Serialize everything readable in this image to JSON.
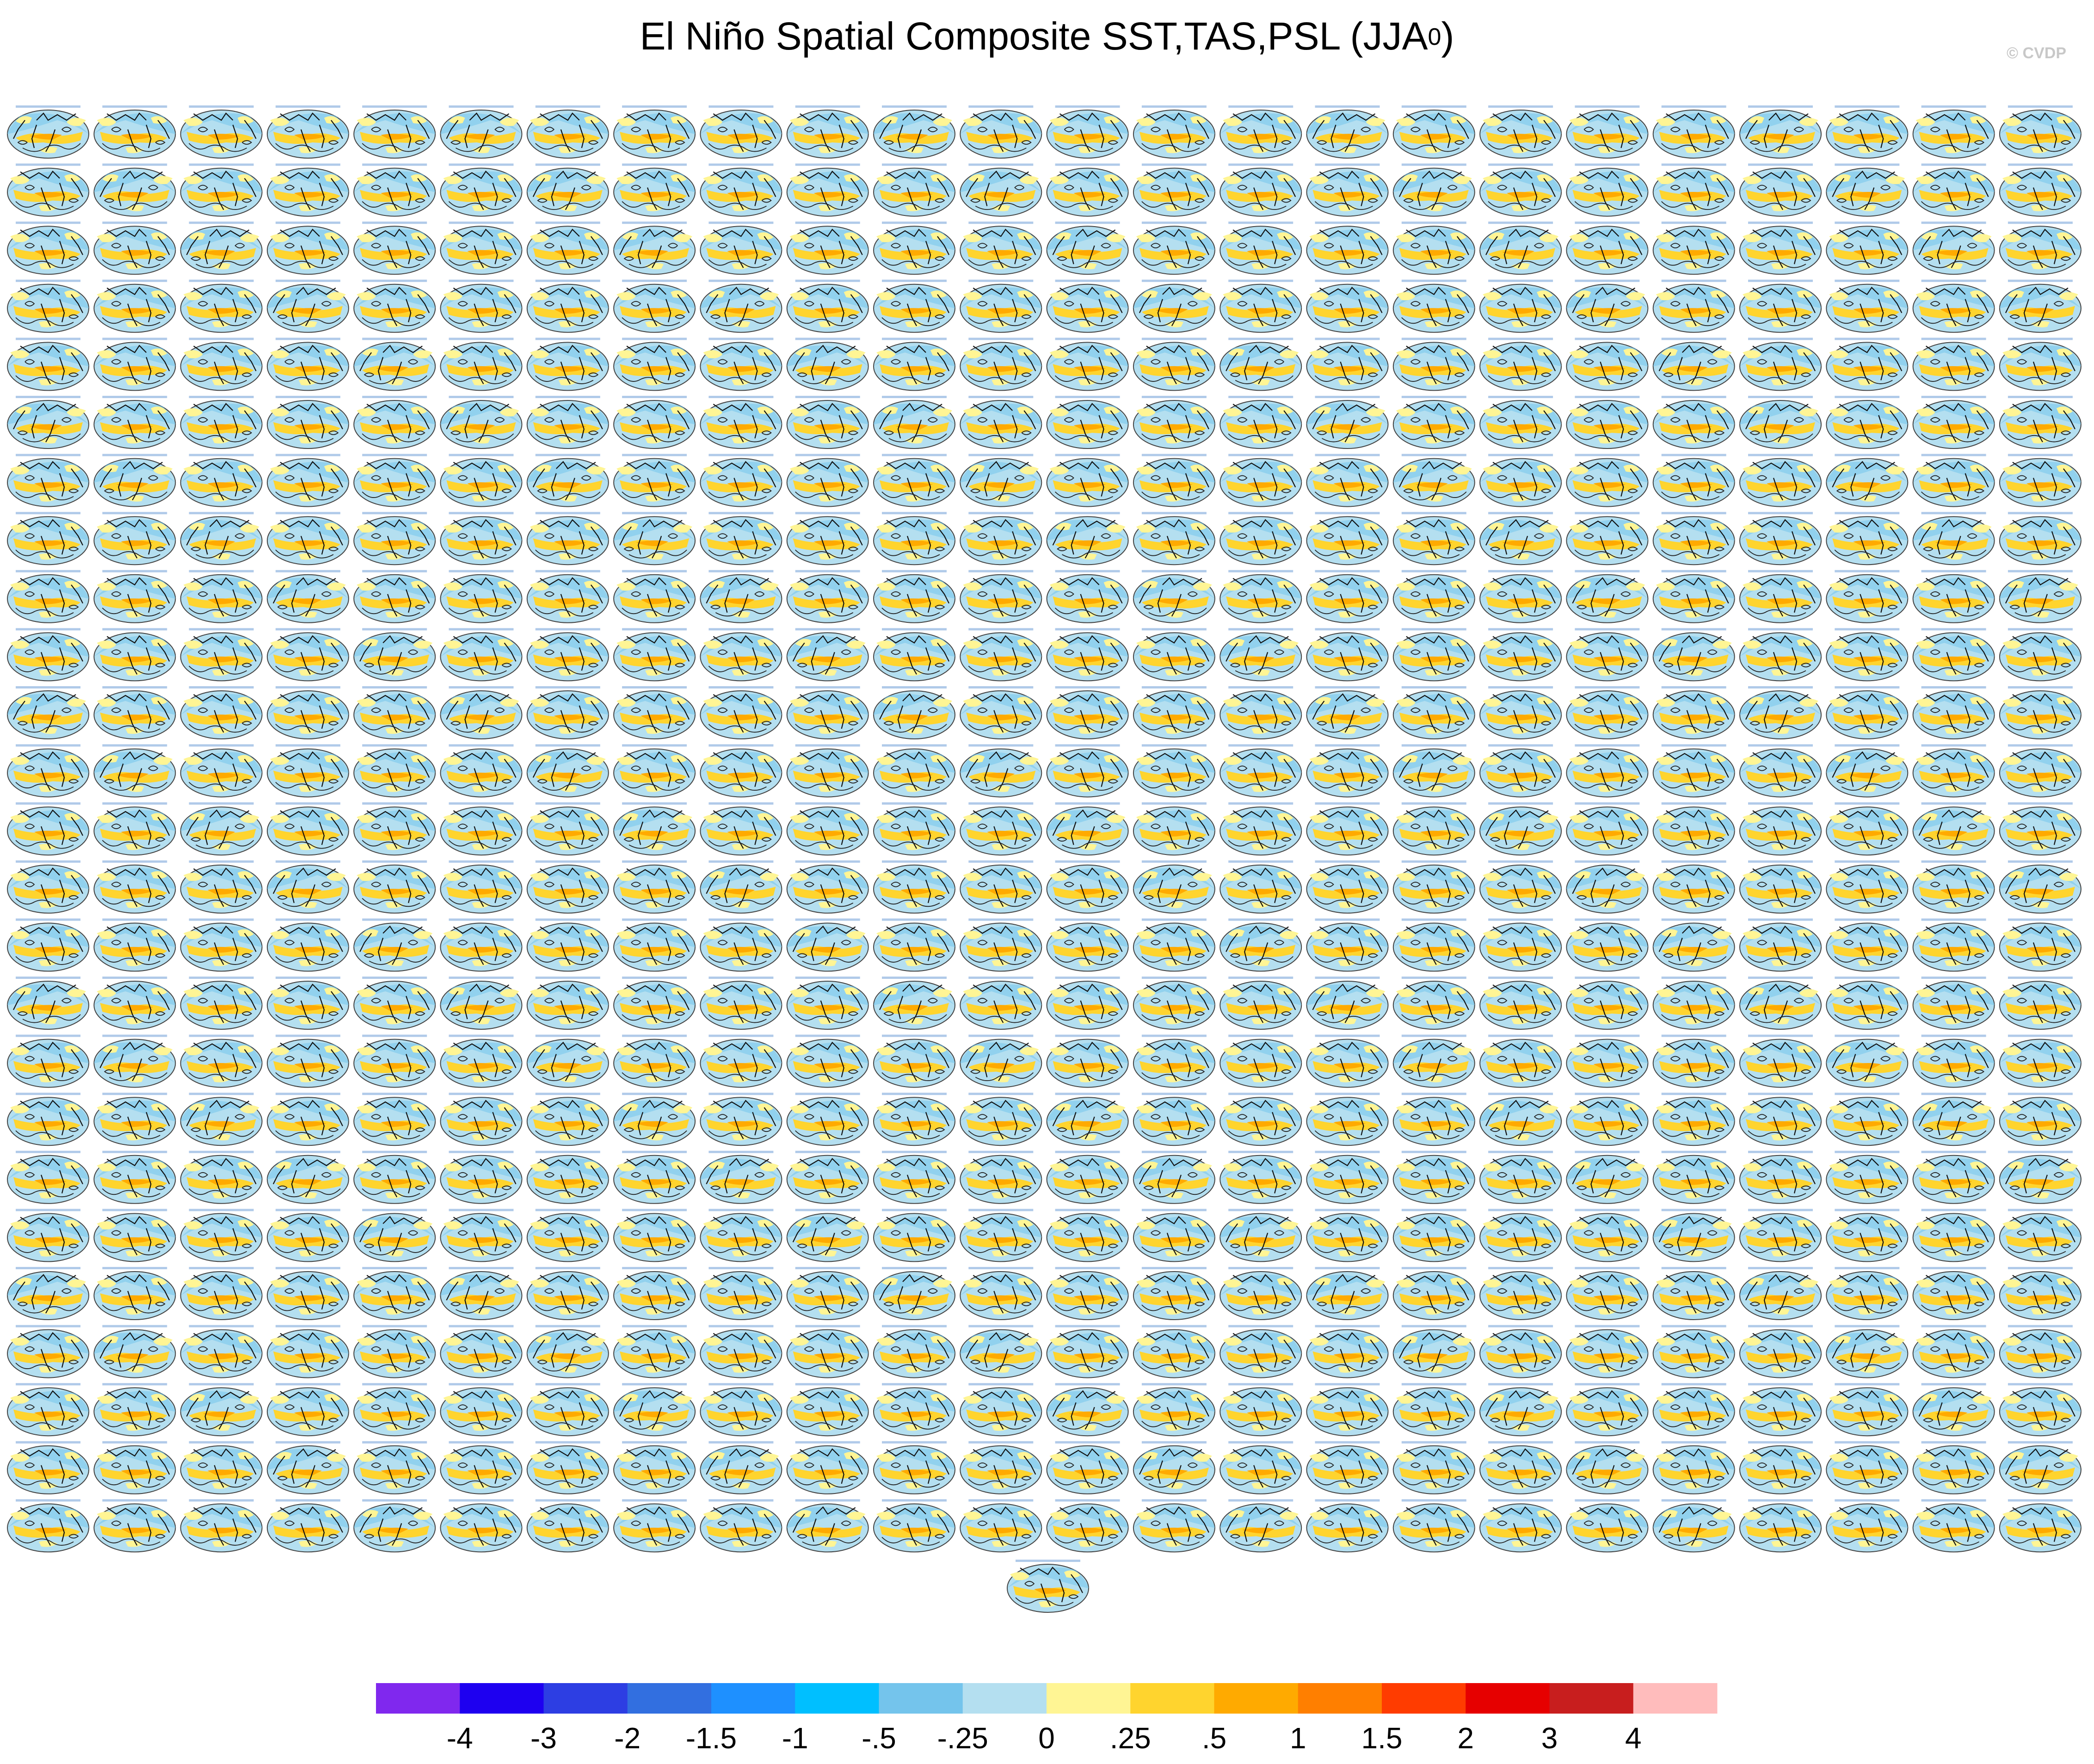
{
  "title": {
    "main": "El Niño Spatial Composite SST,TAS,PSL (JJA",
    "superscript": "0",
    "close": ")"
  },
  "watermark": "© CVDP",
  "panel_grid": {
    "rows": 25,
    "columns": 24,
    "extra_panels_last_row": 1,
    "total_panels": 601,
    "panel_title_color": "#8fb4e0"
  },
  "chart_data": {
    "type": "heatmap",
    "title": "El Niño Spatial Composite SST,TAS,PSL (JJA0)",
    "description_fields": [
      "SST",
      "TAS",
      "PSL"
    ],
    "season": "JJA0",
    "projection": "global map panels with filled shading and black contour lines",
    "colorbar": {
      "tick_labels": [
        "-4",
        "-3",
        "-2",
        "-1.5",
        "-1",
        "-.5",
        "-.25",
        "0",
        ".25",
        ".5",
        "1",
        "1.5",
        "2",
        "3",
        "4"
      ],
      "tick_values": [
        -4,
        -3,
        -2,
        -1.5,
        -1,
        -0.5,
        -0.25,
        0,
        0.25,
        0.5,
        1,
        1.5,
        2,
        3,
        4
      ],
      "colors": [
        "#8028ee",
        "#1e00f0",
        "#2d3ee3",
        "#326fe0",
        "#1e90ff",
        "#00bfff",
        "#74c4ec",
        "#b4dff0",
        "#fff594",
        "#ffd42e",
        "#ffaa00",
        "#ff7f00",
        "#ff3c00",
        "#e60000",
        "#c81e1e",
        "#ffbcbc"
      ]
    },
    "map_colors": {
      "ocean_warm": "#ffd42e",
      "ocean_hot": "#ffaa00",
      "ocean_cool": "#b4dff0",
      "ocean_cold": "#74c4ec",
      "contour": "#111111",
      "land": "#ffffff"
    }
  }
}
